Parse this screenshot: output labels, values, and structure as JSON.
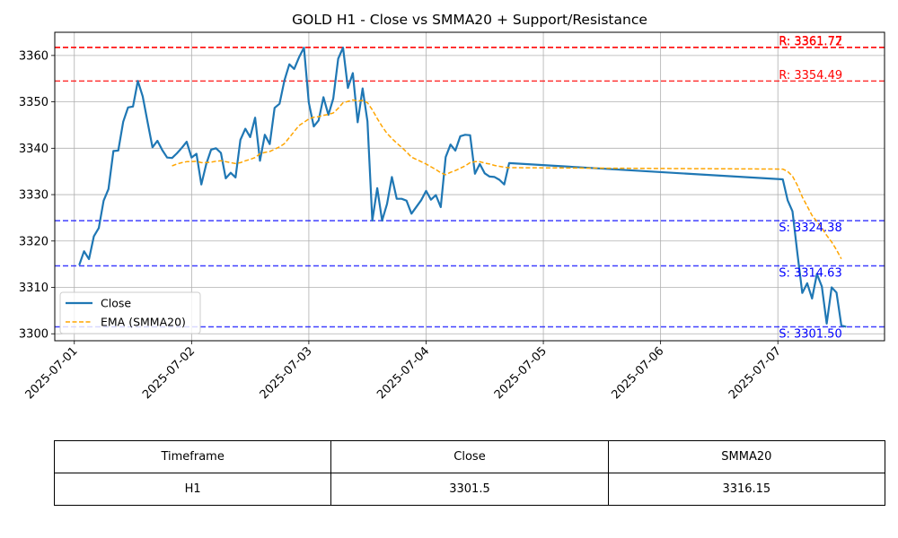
{
  "chart_data": {
    "type": "line",
    "title": "GOLD H1 - Close vs SMMA20 + Support/Resistance",
    "xlabel": "",
    "ylabel": "",
    "x_ticks": [
      "2025-07-01",
      "2025-07-02",
      "2025-07-03",
      "2025-07-04",
      "2025-07-05",
      "2025-07-06",
      "2025-07-07"
    ],
    "xlim": [
      "2025-06-30T20:00",
      "2025-07-07T21:50"
    ],
    "ylim": [
      3298.5,
      3365.0
    ],
    "y_ticks": [
      3300,
      3310,
      3320,
      3330,
      3340,
      3350,
      3360
    ],
    "grid": true,
    "legend_position": "lower-left",
    "series": [
      {
        "name": "Close",
        "color": "#1f77b4",
        "style": "solid",
        "points": [
          [
            "2025-07-01T01:00",
            3314.8
          ],
          [
            "2025-07-01T02:00",
            3317.8
          ],
          [
            "2025-07-01T03:00",
            3316.1
          ],
          [
            "2025-07-01T04:00",
            3321.0
          ],
          [
            "2025-07-01T05:00",
            3322.8
          ],
          [
            "2025-07-01T06:00",
            3328.7
          ],
          [
            "2025-07-01T07:00",
            3331.2
          ],
          [
            "2025-07-01T08:00",
            3339.4
          ],
          [
            "2025-07-01T09:00",
            3339.5
          ],
          [
            "2025-07-01T10:00",
            3345.7
          ],
          [
            "2025-07-01T11:00",
            3348.8
          ],
          [
            "2025-07-01T12:00",
            3349.0
          ],
          [
            "2025-07-01T13:00",
            3354.5
          ],
          [
            "2025-07-01T14:00",
            3351.2
          ],
          [
            "2025-07-01T15:00",
            3345.6
          ],
          [
            "2025-07-01T16:00",
            3340.2
          ],
          [
            "2025-07-01T17:00",
            3341.6
          ],
          [
            "2025-07-01T18:00",
            3339.6
          ],
          [
            "2025-07-01T19:00",
            3338.0
          ],
          [
            "2025-07-01T20:00",
            3337.9
          ],
          [
            "2025-07-01T21:00",
            3338.9
          ],
          [
            "2025-07-01T22:00",
            3340.1
          ],
          [
            "2025-07-01T23:00",
            3341.4
          ],
          [
            "2025-07-02T00:00",
            3338.0
          ],
          [
            "2025-07-02T01:00",
            3338.8
          ],
          [
            "2025-07-02T02:00",
            3332.2
          ],
          [
            "2025-07-02T03:00",
            3336.6
          ],
          [
            "2025-07-02T04:00",
            3339.7
          ],
          [
            "2025-07-02T05:00",
            3340.0
          ],
          [
            "2025-07-02T06:00",
            3339.0
          ],
          [
            "2025-07-02T07:00",
            3333.5
          ],
          [
            "2025-07-02T08:00",
            3334.7
          ],
          [
            "2025-07-02T09:00",
            3333.7
          ],
          [
            "2025-07-02T10:00",
            3341.8
          ],
          [
            "2025-07-02T11:00",
            3344.2
          ],
          [
            "2025-07-02T12:00",
            3342.4
          ],
          [
            "2025-07-02T13:00",
            3346.6
          ],
          [
            "2025-07-02T14:00",
            3337.3
          ],
          [
            "2025-07-02T15:00",
            3342.9
          ],
          [
            "2025-07-02T16:00",
            3340.9
          ],
          [
            "2025-07-02T17:00",
            3348.7
          ],
          [
            "2025-07-02T18:00",
            3349.6
          ],
          [
            "2025-07-02T19:00",
            3354.6
          ],
          [
            "2025-07-02T20:00",
            3358.1
          ],
          [
            "2025-07-02T21:00",
            3357.1
          ],
          [
            "2025-07-02T22:00",
            3359.6
          ],
          [
            "2025-07-02T23:00",
            3361.7
          ],
          [
            "2025-07-03T00:00",
            3349.8
          ],
          [
            "2025-07-03T01:00",
            3344.7
          ],
          [
            "2025-07-03T02:00",
            3346.0
          ],
          [
            "2025-07-03T03:00",
            3351.0
          ],
          [
            "2025-07-03T04:00",
            3347.2
          ],
          [
            "2025-07-03T05:00",
            3350.7
          ],
          [
            "2025-07-03T06:00",
            3359.3
          ],
          [
            "2025-07-03T07:00",
            3361.7
          ],
          [
            "2025-07-03T08:00",
            3353.0
          ],
          [
            "2025-07-03T09:00",
            3356.2
          ],
          [
            "2025-07-03T10:00",
            3345.6
          ],
          [
            "2025-07-03T11:00",
            3352.9
          ],
          [
            "2025-07-03T12:00",
            3345.8
          ],
          [
            "2025-07-03T13:00",
            3324.4
          ],
          [
            "2025-07-03T14:00",
            3331.4
          ],
          [
            "2025-07-03T15:00",
            3324.4
          ],
          [
            "2025-07-03T16:00",
            3328.0
          ],
          [
            "2025-07-03T17:00",
            3333.8
          ],
          [
            "2025-07-03T18:00",
            3329.1
          ],
          [
            "2025-07-03T19:00",
            3329.1
          ],
          [
            "2025-07-03T20:00",
            3328.7
          ],
          [
            "2025-07-03T21:00",
            3325.9
          ],
          [
            "2025-07-03T23:00",
            3328.8
          ],
          [
            "2025-07-04T00:00",
            3330.8
          ],
          [
            "2025-07-04T01:00",
            3328.9
          ],
          [
            "2025-07-04T02:00",
            3329.9
          ],
          [
            "2025-07-04T03:00",
            3327.3
          ],
          [
            "2025-07-04T04:00",
            3338.1
          ],
          [
            "2025-07-04T05:00",
            3340.8
          ],
          [
            "2025-07-04T06:00",
            3339.5
          ],
          [
            "2025-07-04T07:00",
            3342.6
          ],
          [
            "2025-07-04T08:00",
            3342.9
          ],
          [
            "2025-07-04T09:00",
            3342.8
          ],
          [
            "2025-07-04T10:00",
            3334.5
          ],
          [
            "2025-07-04T11:00",
            3336.6
          ],
          [
            "2025-07-04T12:00",
            3334.6
          ],
          [
            "2025-07-04T13:00",
            3333.9
          ],
          [
            "2025-07-04T14:00",
            3333.8
          ],
          [
            "2025-07-04T15:00",
            3333.2
          ],
          [
            "2025-07-04T16:00",
            3332.2
          ],
          [
            "2025-07-04T17:00",
            3336.8
          ],
          [
            "2025-07-07T01:00",
            3333.3
          ],
          [
            "2025-07-07T02:00",
            3328.8
          ],
          [
            "2025-07-07T03:00",
            3326.4
          ],
          [
            "2025-07-07T04:00",
            3317.3
          ],
          [
            "2025-07-07T05:00",
            3308.8
          ],
          [
            "2025-07-07T06:00",
            3310.9
          ],
          [
            "2025-07-07T07:00",
            3307.6
          ],
          [
            "2025-07-07T08:00",
            3312.9
          ],
          [
            "2025-07-07T09:00",
            3310.2
          ],
          [
            "2025-07-07T10:00",
            3302.2
          ],
          [
            "2025-07-07T11:00",
            3310.0
          ],
          [
            "2025-07-07T12:00",
            3308.9
          ],
          [
            "2025-07-07T13:00",
            3301.8
          ],
          [
            "2025-07-07T14:00",
            3301.5
          ]
        ]
      },
      {
        "name": "EMA (SMMA20)",
        "color": "#ffa500",
        "style": "dashed",
        "points": [
          [
            "2025-07-01T20:00",
            3336.2
          ],
          [
            "2025-07-01T21:00",
            3336.6
          ],
          [
            "2025-07-01T22:00",
            3336.9
          ],
          [
            "2025-07-01T23:00",
            3337.1
          ],
          [
            "2025-07-02T00:00",
            3337.1
          ],
          [
            "2025-07-02T01:00",
            3337.2
          ],
          [
            "2025-07-02T02:00",
            3336.9
          ],
          [
            "2025-07-02T03:00",
            3336.9
          ],
          [
            "2025-07-02T04:00",
            3337.0
          ],
          [
            "2025-07-02T05:00",
            3337.2
          ],
          [
            "2025-07-02T06:00",
            3337.3
          ],
          [
            "2025-07-02T07:00",
            3337.1
          ],
          [
            "2025-07-02T08:00",
            3336.9
          ],
          [
            "2025-07-02T09:00",
            3336.7
          ],
          [
            "2025-07-02T10:00",
            3336.9
          ],
          [
            "2025-07-02T11:00",
            3337.3
          ],
          [
            "2025-07-02T12:00",
            3337.6
          ],
          [
            "2025-07-02T13:00",
            3338.0
          ],
          [
            "2025-07-02T14:00",
            3338.8
          ],
          [
            "2025-07-02T15:00",
            3339.1
          ],
          [
            "2025-07-02T16:00",
            3339.3
          ],
          [
            "2025-07-02T17:00",
            3339.8
          ],
          [
            "2025-07-02T18:00",
            3340.3
          ],
          [
            "2025-07-02T19:00",
            3341.0
          ],
          [
            "2025-07-02T20:00",
            3342.3
          ],
          [
            "2025-07-02T21:00",
            3343.6
          ],
          [
            "2025-07-02T22:00",
            3344.9
          ],
          [
            "2025-07-02T23:00",
            3345.6
          ],
          [
            "2025-07-03T00:00",
            3346.3
          ],
          [
            "2025-07-03T01:00",
            3346.7
          ],
          [
            "2025-07-03T02:00",
            3346.8
          ],
          [
            "2025-07-03T03:00",
            3347.1
          ],
          [
            "2025-07-03T04:00",
            3347.3
          ],
          [
            "2025-07-03T05:00",
            3347.6
          ],
          [
            "2025-07-03T06:00",
            3348.6
          ],
          [
            "2025-07-03T07:00",
            3349.8
          ],
          [
            "2025-07-03T08:00",
            3350.1
          ],
          [
            "2025-07-03T09:00",
            3350.4
          ],
          [
            "2025-07-03T10:00",
            3350.2
          ],
          [
            "2025-07-03T11:00",
            3350.3
          ],
          [
            "2025-07-03T12:00",
            3349.8
          ],
          [
            "2025-07-03T13:00",
            3348.3
          ],
          [
            "2025-07-03T14:00",
            3346.4
          ],
          [
            "2025-07-03T15:00",
            3344.7
          ],
          [
            "2025-07-03T16:00",
            3343.2
          ],
          [
            "2025-07-03T17:00",
            3342.1
          ],
          [
            "2025-07-03T18:00",
            3341.1
          ],
          [
            "2025-07-03T19:00",
            3340.2
          ],
          [
            "2025-07-03T20:00",
            3339.2
          ],
          [
            "2025-07-03T21:00",
            3338.1
          ],
          [
            "2025-07-03T23:00",
            3337.1
          ],
          [
            "2025-07-04T00:00",
            3336.6
          ],
          [
            "2025-07-04T01:00",
            3336.0
          ],
          [
            "2025-07-04T02:00",
            3335.4
          ],
          [
            "2025-07-04T03:00",
            3334.7
          ],
          [
            "2025-07-04T04:00",
            3334.3
          ],
          [
            "2025-07-04T05:00",
            3334.8
          ],
          [
            "2025-07-04T06:00",
            3335.2
          ],
          [
            "2025-07-04T07:00",
            3335.7
          ],
          [
            "2025-07-04T08:00",
            3336.2
          ],
          [
            "2025-07-04T09:00",
            3336.9
          ],
          [
            "2025-07-04T10:00",
            3337.1
          ],
          [
            "2025-07-04T11:00",
            3337.1
          ],
          [
            "2025-07-04T12:00",
            3336.8
          ],
          [
            "2025-07-04T13:00",
            3336.6
          ],
          [
            "2025-07-04T14:00",
            3336.3
          ],
          [
            "2025-07-04T15:00",
            3336.1
          ],
          [
            "2025-07-04T16:00",
            3335.9
          ],
          [
            "2025-07-04T17:00",
            3335.8
          ],
          [
            "2025-07-07T01:00",
            3335.5
          ],
          [
            "2025-07-07T02:00",
            3335.0
          ],
          [
            "2025-07-07T03:00",
            3334.0
          ],
          [
            "2025-07-07T04:00",
            3332.0
          ],
          [
            "2025-07-07T05:00",
            3329.5
          ],
          [
            "2025-07-07T06:00",
            3327.5
          ],
          [
            "2025-07-07T07:00",
            3325.5
          ],
          [
            "2025-07-07T08:00",
            3324.2
          ],
          [
            "2025-07-07T09:00",
            3322.8
          ],
          [
            "2025-07-07T10:00",
            3321.2
          ],
          [
            "2025-07-07T11:00",
            3319.8
          ],
          [
            "2025-07-07T12:00",
            3318.1
          ],
          [
            "2025-07-07T13:00",
            3316.15
          ]
        ]
      }
    ],
    "resistance_levels": [
      {
        "value": 3361.77,
        "label": "R: 3361.77"
      },
      {
        "value": 3361.72,
        "label": "R: 3361.72"
      },
      {
        "value": 3354.49,
        "label": "R: 3354.49"
      }
    ],
    "support_levels": [
      {
        "value": 3324.38,
        "label": "S: 3324.38"
      },
      {
        "value": 3314.63,
        "label": "S: 3314.63"
      },
      {
        "value": 3301.5,
        "label": "S: 3301.50"
      }
    ],
    "resistance_color": "#ff0000",
    "support_color": "#0000ff"
  },
  "table": {
    "headers": [
      "Timeframe",
      "Close",
      "SMMA20"
    ],
    "rows": [
      [
        "H1",
        "3301.5",
        "3316.15"
      ]
    ]
  }
}
